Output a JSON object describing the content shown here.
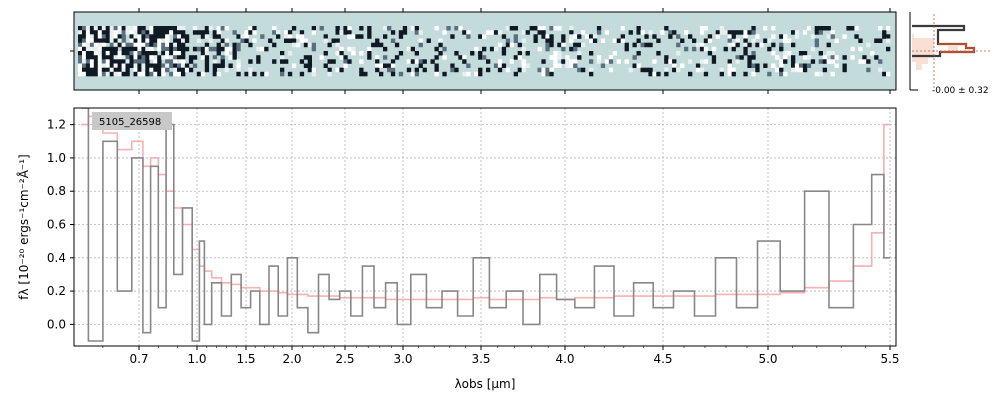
{
  "figure": {
    "object_label": "5105_26598",
    "profile_annotation": "-0.00 ± 0.32"
  },
  "chart_data": {
    "type": "line",
    "title": "",
    "xlabel": "λobs [μm]",
    "ylabel": "fλ [10⁻²⁰ ergs⁻¹cm⁻²Å⁻¹]",
    "x_scale": "non-linear (prism dispersion)",
    "xlim": [
      0.52,
      5.52
    ],
    "ylim": [
      -0.13,
      1.3
    ],
    "x_ticks": [
      {
        "value": 0.7,
        "label": "0.7"
      },
      {
        "value": 1.0,
        "label": "1.0"
      },
      {
        "value": 1.5,
        "label": "1.5"
      },
      {
        "value": 2.0,
        "label": "2.0"
      },
      {
        "value": 2.5,
        "label": "2.5"
      },
      {
        "value": 3.0,
        "label": "3.0"
      },
      {
        "value": 3.5,
        "label": "3.5"
      },
      {
        "value": 4.0,
        "label": "4.0"
      },
      {
        "value": 4.5,
        "label": "4.5"
      },
      {
        "value": 5.0,
        "label": "5.0"
      },
      {
        "value": 5.5,
        "label": "5.5"
      }
    ],
    "y_ticks": [
      {
        "value": 0.0,
        "label": "0.0"
      },
      {
        "value": 0.2,
        "label": "0.2"
      },
      {
        "value": 0.4,
        "label": "0.4"
      },
      {
        "value": 0.6,
        "label": "0.6"
      },
      {
        "value": 0.8,
        "label": "0.8"
      },
      {
        "value": 1.0,
        "label": "1.0"
      },
      {
        "value": 1.2,
        "label": "1.2"
      }
    ],
    "grid": true,
    "series": [
      {
        "role": "flux_steps",
        "color": "#888888",
        "x": [
          0.54,
          0.58,
          0.62,
          0.66,
          0.7,
          0.74,
          0.78,
          0.82,
          0.86,
          0.9,
          0.95,
          1.0,
          1.05,
          1.1,
          1.2,
          1.3,
          1.4,
          1.5,
          1.6,
          1.7,
          1.8,
          1.9,
          2.0,
          2.1,
          2.2,
          2.3,
          2.4,
          2.5,
          2.6,
          2.7,
          2.8,
          2.9,
          3.0,
          3.1,
          3.2,
          3.3,
          3.4,
          3.5,
          3.6,
          3.7,
          3.8,
          3.9,
          4.0,
          4.1,
          4.2,
          4.3,
          4.4,
          4.5,
          4.6,
          4.7,
          4.8,
          4.9,
          5.0,
          5.1,
          5.2,
          5.3,
          5.4,
          5.45,
          5.5
        ],
        "y": [
          1.3,
          -0.1,
          1.1,
          0.2,
          1.0,
          -0.05,
          0.95,
          0.1,
          1.2,
          0.3,
          0.7,
          -0.1,
          0.5,
          0.0,
          0.25,
          0.05,
          0.3,
          0.1,
          0.2,
          0.0,
          0.35,
          0.05,
          0.4,
          0.1,
          -0.05,
          0.3,
          0.15,
          0.2,
          0.05,
          0.35,
          0.1,
          0.25,
          0.0,
          0.3,
          0.1,
          0.2,
          0.05,
          0.4,
          0.1,
          0.2,
          0.0,
          0.3,
          0.15,
          0.1,
          0.35,
          0.05,
          0.25,
          0.1,
          0.2,
          0.05,
          0.4,
          0.1,
          0.5,
          0.2,
          0.8,
          0.1,
          0.6,
          0.9,
          0.4
        ]
      },
      {
        "role": "model",
        "color": "#f4a3a3",
        "x": [
          0.54,
          0.58,
          0.62,
          0.66,
          0.7,
          0.74,
          0.78,
          0.82,
          0.86,
          0.9,
          0.95,
          1.0,
          1.05,
          1.1,
          1.2,
          1.3,
          1.4,
          1.5,
          1.6,
          1.7,
          1.8,
          1.9,
          2.0,
          2.1,
          2.2,
          2.3,
          2.4,
          2.5,
          2.6,
          2.7,
          2.8,
          2.9,
          3.0,
          3.1,
          3.2,
          3.3,
          3.4,
          3.5,
          3.6,
          3.7,
          3.8,
          3.9,
          4.0,
          4.1,
          4.2,
          4.3,
          4.4,
          4.5,
          4.6,
          4.7,
          4.8,
          4.9,
          5.0,
          5.1,
          5.2,
          5.3,
          5.4,
          5.45,
          5.5
        ],
        "y": [
          1.2,
          1.25,
          1.15,
          1.05,
          1.1,
          0.95,
          1.0,
          0.9,
          0.8,
          0.7,
          0.6,
          0.45,
          0.35,
          0.32,
          0.28,
          0.25,
          0.24,
          0.22,
          0.22,
          0.2,
          0.2,
          0.19,
          0.18,
          0.18,
          0.17,
          0.17,
          0.17,
          0.16,
          0.16,
          0.16,
          0.16,
          0.15,
          0.15,
          0.15,
          0.15,
          0.15,
          0.15,
          0.16,
          0.15,
          0.15,
          0.15,
          0.16,
          0.15,
          0.16,
          0.16,
          0.17,
          0.17,
          0.17,
          0.17,
          0.17,
          0.18,
          0.18,
          0.18,
          0.19,
          0.22,
          0.26,
          0.35,
          0.55,
          1.2
        ]
      }
    ]
  }
}
